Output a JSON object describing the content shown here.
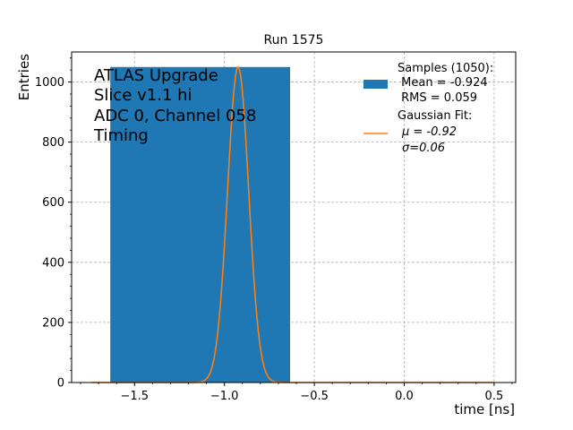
{
  "chart_data": {
    "type": "bar",
    "title": "Run 1575",
    "xlabel": "time [ns]",
    "ylabel": "Entries",
    "xlim": [
      -1.85,
      0.62
    ],
    "ylim": [
      0,
      1100
    ],
    "xticks": [
      -1.5,
      -1.0,
      -0.5,
      0.0,
      0.5
    ],
    "xtick_labels": [
      "−1.5",
      "−1.0",
      "−0.5",
      "0.0",
      "0.5"
    ],
    "yticks": [
      0,
      200,
      400,
      600,
      800,
      1000
    ],
    "ytick_labels": [
      "0",
      "200",
      "400",
      "600",
      "800",
      "1000"
    ],
    "grid": true,
    "legend_position": "top-right",
    "annotation_lines": [
      "ATLAS Upgrade",
      "Slice v1.1 hi",
      "ADC 0, Channel 058",
      "Timing"
    ],
    "histogram": {
      "name": "Samples (1050):",
      "bins": [
        {
          "x0": -1.635,
          "x1": -0.635,
          "value": 1050
        }
      ],
      "color": "#1f77b4",
      "legend_lines": [
        "Samples (1050):",
        " Mean = -0.924",
        " RMS = 0.059"
      ]
    },
    "gaussian_fit": {
      "name": "Gaussian Fit:",
      "mu": -0.924,
      "sigma": 0.059,
      "amplitude": 1050,
      "x_range": [
        -1.74,
        0.5
      ],
      "color": "#ff7f0e",
      "legend_lines": [
        "Gaussian Fit:",
        "μ = -0.92",
        "σ=0.06"
      ]
    }
  }
}
